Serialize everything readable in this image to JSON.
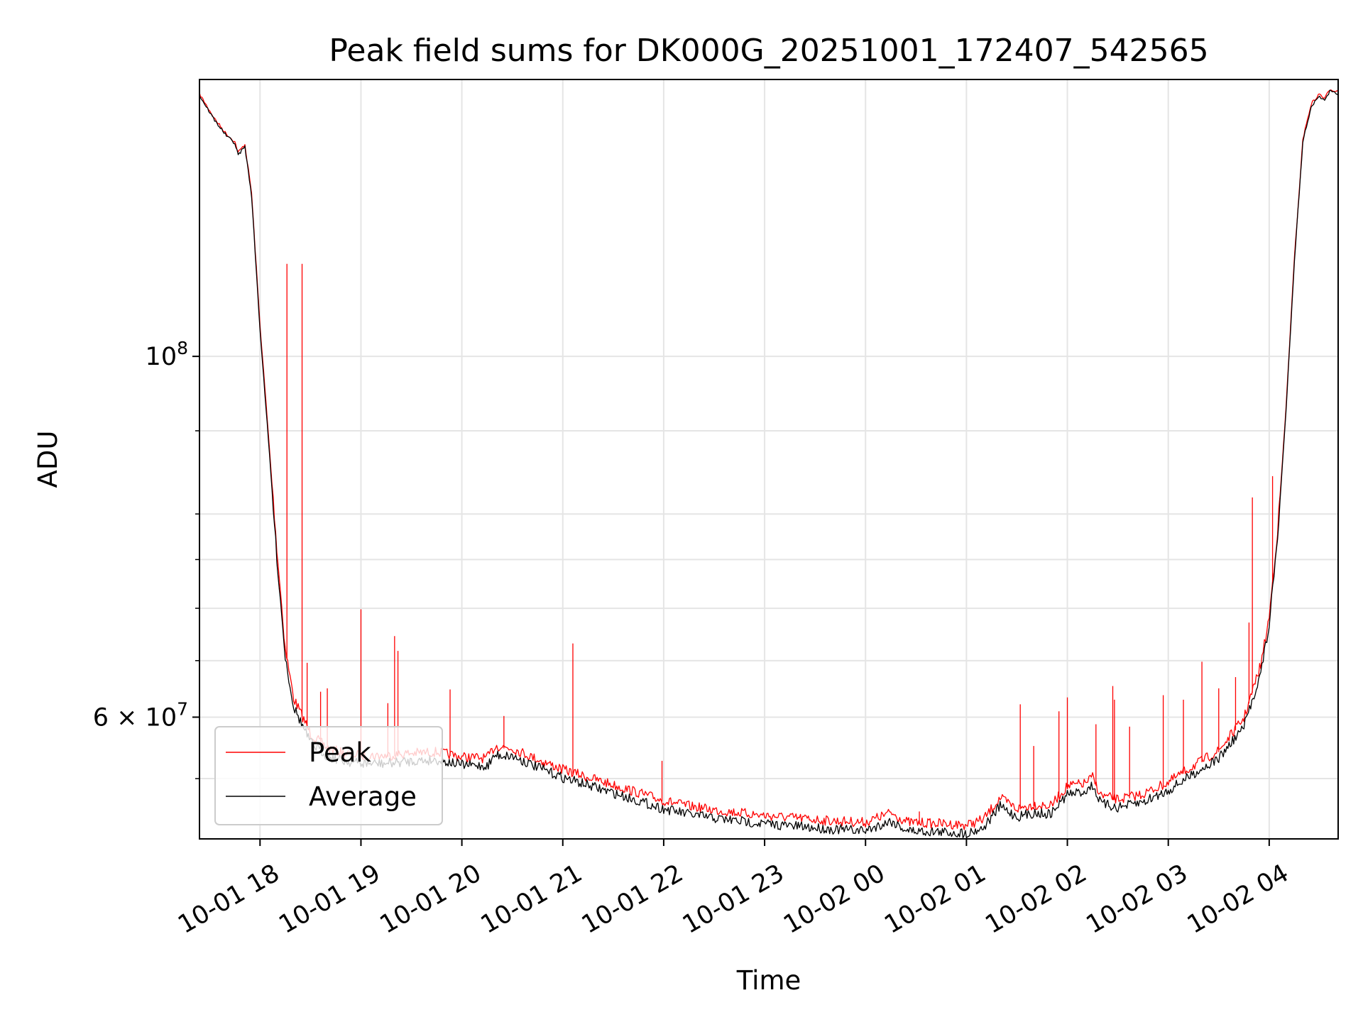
{
  "chart_data": {
    "type": "line",
    "title": "Peak field sums for DK000G_20251001_172407_542565",
    "xlabel": "Time",
    "ylabel": "ADU",
    "y_scale": "log",
    "grid": true,
    "legend_position": "lower-left",
    "xlim": [
      "2025-10-01 17:24",
      "2025-10-02 04:41"
    ],
    "ylim": [
      50500000,
      148000000
    ],
    "x_ticks": [
      {
        "t": "2025-10-01 18:00",
        "label": "10-01 18"
      },
      {
        "t": "2025-10-01 19:00",
        "label": "10-01 19"
      },
      {
        "t": "2025-10-01 20:00",
        "label": "10-01 20"
      },
      {
        "t": "2025-10-01 21:00",
        "label": "10-01 21"
      },
      {
        "t": "2025-10-01 22:00",
        "label": "10-01 22"
      },
      {
        "t": "2025-10-01 23:00",
        "label": "10-01 23"
      },
      {
        "t": "2025-10-02 00:00",
        "label": "10-02 00"
      },
      {
        "t": "2025-10-02 01:00",
        "label": "10-02 01"
      },
      {
        "t": "2025-10-02 02:00",
        "label": "10-02 02"
      },
      {
        "t": "2025-10-02 03:00",
        "label": "10-02 03"
      },
      {
        "t": "2025-10-02 04:00",
        "label": "10-02 04"
      }
    ],
    "y_major_ticks": [
      {
        "v": 100000000,
        "label_base": "10",
        "label_exp": "8"
      },
      {
        "v": 60000000,
        "label_base": "6 × 10",
        "label_exp": "7"
      }
    ],
    "y_minor_grid": [
      55000000,
      65000000,
      70000000,
      75000000,
      80000000,
      90000000
    ],
    "series": [
      {
        "name": "Peak",
        "color": "#ff0000",
        "line_width": 1.3,
        "points": [
          [
            "2025-10-01 17:24",
            145000000
          ],
          [
            "2025-10-01 17:33",
            140000000
          ],
          [
            "2025-10-01 17:40",
            137000000
          ],
          [
            "2025-10-01 17:45",
            135500000
          ],
          [
            "2025-10-01 17:47",
            133500000
          ],
          [
            "2025-10-01 17:51",
            135000000
          ],
          [
            "2025-10-01 17:55",
            126000000
          ],
          [
            "2025-10-01 18:00",
            104500000
          ],
          [
            "2025-10-01 18:05",
            89500000
          ],
          [
            "2025-10-01 18:10",
            76000000
          ],
          [
            "2025-10-01 18:15",
            66000000
          ],
          [
            "2025-10-01 18:20",
            61500000
          ],
          [
            "2025-10-01 18:30",
            58500000
          ],
          [
            "2025-10-01 18:40",
            57300000
          ],
          [
            "2025-10-01 18:50",
            56900000
          ],
          [
            "2025-10-01 19:00",
            56700000
          ],
          [
            "2025-10-01 19:15",
            56700000
          ],
          [
            "2025-10-01 19:30",
            56900000
          ],
          [
            "2025-10-01 19:45",
            57000000
          ],
          [
            "2025-10-01 20:00",
            56600000
          ],
          [
            "2025-10-01 20:15",
            56500000
          ],
          [
            "2025-10-01 20:20",
            57500000
          ],
          [
            "2025-10-01 20:30",
            57300000
          ],
          [
            "2025-10-01 20:45",
            56400000
          ],
          [
            "2025-10-01 21:00",
            55600000
          ],
          [
            "2025-10-01 21:15",
            55000000
          ],
          [
            "2025-10-01 21:30",
            54400000
          ],
          [
            "2025-10-01 21:45",
            53800000
          ],
          [
            "2025-10-01 22:00",
            53200000
          ],
          [
            "2025-10-01 22:15",
            52800000
          ],
          [
            "2025-10-01 22:30",
            52500000
          ],
          [
            "2025-10-01 22:45",
            52300000
          ],
          [
            "2025-10-01 23:00",
            52100000
          ],
          [
            "2025-10-01 23:20",
            51900000
          ],
          [
            "2025-10-01 23:40",
            51700000
          ],
          [
            "2025-10-02 00:00",
            51600000
          ],
          [
            "2025-10-02 00:15",
            52300000
          ],
          [
            "2025-10-02 00:25",
            51600000
          ],
          [
            "2025-10-02 00:45",
            51500000
          ],
          [
            "2025-10-02 01:00",
            51400000
          ],
          [
            "2025-10-02 01:10",
            51800000
          ],
          [
            "2025-10-02 01:20",
            53400000
          ],
          [
            "2025-10-02 01:30",
            52600000
          ],
          [
            "2025-10-02 01:40",
            52900000
          ],
          [
            "2025-10-02 01:50",
            52800000
          ],
          [
            "2025-10-02 02:00",
            54300000
          ],
          [
            "2025-10-02 02:10",
            54500000
          ],
          [
            "2025-10-02 02:15",
            55000000
          ],
          [
            "2025-10-02 02:20",
            53600000
          ],
          [
            "2025-10-02 02:30",
            53300000
          ],
          [
            "2025-10-02 02:45",
            53700000
          ],
          [
            "2025-10-02 03:00",
            54600000
          ],
          [
            "2025-10-02 03:15",
            55900000
          ],
          [
            "2025-10-02 03:30",
            57100000
          ],
          [
            "2025-10-02 03:45",
            59800000
          ],
          [
            "2025-10-02 03:55",
            64500000
          ],
          [
            "2025-10-02 04:00",
            69000000
          ],
          [
            "2025-10-02 04:05",
            78000000
          ],
          [
            "2025-10-02 04:10",
            93000000
          ],
          [
            "2025-10-02 04:15",
            115000000
          ],
          [
            "2025-10-02 04:20",
            136000000
          ],
          [
            "2025-10-02 04:25",
            143000000
          ],
          [
            "2025-10-02 04:30",
            145000000
          ],
          [
            "2025-10-02 04:33",
            144000000
          ],
          [
            "2025-10-02 04:36",
            146000000
          ],
          [
            "2025-10-02 04:41",
            145500000
          ]
        ],
        "spikes": [
          [
            "2025-10-01 18:16",
            114000000
          ],
          [
            "2025-10-01 18:25",
            114000000
          ],
          [
            "2025-10-01 18:28",
            64800000
          ],
          [
            "2025-10-01 18:36",
            62200000
          ],
          [
            "2025-10-01 18:40",
            62500000
          ],
          [
            "2025-10-01 19:00",
            69900000
          ],
          [
            "2025-10-01 19:16",
            61200000
          ],
          [
            "2025-10-01 19:20",
            67300000
          ],
          [
            "2025-10-01 19:22",
            65900000
          ],
          [
            "2025-10-01 19:53",
            62400000
          ],
          [
            "2025-10-01 20:25",
            60100000
          ],
          [
            "2025-10-01 21:06",
            66600000
          ],
          [
            "2025-10-01 21:59",
            56400000
          ],
          [
            "2025-10-02 00:32",
            52500000
          ],
          [
            "2025-10-02 01:32",
            61100000
          ],
          [
            "2025-10-02 01:40",
            57600000
          ],
          [
            "2025-10-02 01:55",
            60500000
          ],
          [
            "2025-10-02 02:00",
            61700000
          ],
          [
            "2025-10-02 02:17",
            59400000
          ],
          [
            "2025-10-02 02:27",
            62700000
          ],
          [
            "2025-10-02 02:28",
            61500000
          ],
          [
            "2025-10-02 02:37",
            59200000
          ],
          [
            "2025-10-02 02:57",
            61900000
          ],
          [
            "2025-10-02 03:09",
            61500000
          ],
          [
            "2025-10-02 03:20",
            64900000
          ],
          [
            "2025-10-02 03:30",
            62500000
          ],
          [
            "2025-10-02 03:40",
            63500000
          ],
          [
            "2025-10-02 03:48",
            68600000
          ],
          [
            "2025-10-02 03:50",
            81900000
          ],
          [
            "2025-10-02 04:02",
            84400000
          ]
        ]
      },
      {
        "name": "Average",
        "color": "#000000",
        "line_width": 1.3,
        "points": [
          [
            "2025-10-01 17:24",
            144700000
          ],
          [
            "2025-10-01 17:33",
            139700000
          ],
          [
            "2025-10-01 17:40",
            136700000
          ],
          [
            "2025-10-01 17:45",
            135200000
          ],
          [
            "2025-10-01 17:47",
            133000000
          ],
          [
            "2025-10-01 17:51",
            134600000
          ],
          [
            "2025-10-01 17:55",
            125500000
          ],
          [
            "2025-10-01 18:00",
            103800000
          ],
          [
            "2025-10-01 18:05",
            88800000
          ],
          [
            "2025-10-01 18:10",
            75300000
          ],
          [
            "2025-10-01 18:15",
            65500000
          ],
          [
            "2025-10-01 18:20",
            61000000
          ],
          [
            "2025-10-01 18:30",
            58000000
          ],
          [
            "2025-10-01 18:40",
            56900000
          ],
          [
            "2025-10-01 18:50",
            56500000
          ],
          [
            "2025-10-01 19:00",
            56300000
          ],
          [
            "2025-10-01 19:15",
            56300000
          ],
          [
            "2025-10-01 19:30",
            56500000
          ],
          [
            "2025-10-01 19:45",
            56600000
          ],
          [
            "2025-10-01 20:00",
            56200000
          ],
          [
            "2025-10-01 20:15",
            56100000
          ],
          [
            "2025-10-01 20:20",
            57000000
          ],
          [
            "2025-10-01 20:30",
            56900000
          ],
          [
            "2025-10-01 20:45",
            56000000
          ],
          [
            "2025-10-01 21:00",
            55200000
          ],
          [
            "2025-10-01 21:15",
            54600000
          ],
          [
            "2025-10-01 21:30",
            54000000
          ],
          [
            "2025-10-01 21:45",
            53400000
          ],
          [
            "2025-10-01 22:00",
            52800000
          ],
          [
            "2025-10-01 22:15",
            52400000
          ],
          [
            "2025-10-01 22:30",
            52100000
          ],
          [
            "2025-10-01 22:45",
            51900000
          ],
          [
            "2025-10-01 23:00",
            51700000
          ],
          [
            "2025-10-01 23:20",
            51500000
          ],
          [
            "2025-10-01 23:40",
            51300000
          ],
          [
            "2025-10-02 00:00",
            51200000
          ],
          [
            "2025-10-02 00:15",
            51900000
          ],
          [
            "2025-10-02 00:25",
            51200000
          ],
          [
            "2025-10-02 00:45",
            51100000
          ],
          [
            "2025-10-02 01:00",
            51000000
          ],
          [
            "2025-10-02 01:10",
            51400000
          ],
          [
            "2025-10-02 01:20",
            53000000
          ],
          [
            "2025-10-02 01:30",
            52200000
          ],
          [
            "2025-10-02 01:40",
            52500000
          ],
          [
            "2025-10-02 01:50",
            52400000
          ],
          [
            "2025-10-02 02:00",
            53900000
          ],
          [
            "2025-10-02 02:10",
            54100000
          ],
          [
            "2025-10-02 02:15",
            54600000
          ],
          [
            "2025-10-02 02:20",
            53200000
          ],
          [
            "2025-10-02 02:30",
            52900000
          ],
          [
            "2025-10-02 02:45",
            53300000
          ],
          [
            "2025-10-02 03:00",
            54200000
          ],
          [
            "2025-10-02 03:15",
            55500000
          ],
          [
            "2025-10-02 03:30",
            56700000
          ],
          [
            "2025-10-02 03:45",
            59300000
          ],
          [
            "2025-10-02 03:55",
            64000000
          ],
          [
            "2025-10-02 04:00",
            68500000
          ],
          [
            "2025-10-02 04:05",
            77500000
          ],
          [
            "2025-10-02 04:10",
            92500000
          ],
          [
            "2025-10-02 04:15",
            114500000
          ],
          [
            "2025-10-02 04:20",
            135500000
          ],
          [
            "2025-10-02 04:25",
            142500000
          ],
          [
            "2025-10-02 04:30",
            144500000
          ],
          [
            "2025-10-02 04:33",
            143500000
          ],
          [
            "2025-10-02 04:36",
            145500000
          ],
          [
            "2025-10-02 04:41",
            145000000
          ]
        ]
      }
    ]
  }
}
